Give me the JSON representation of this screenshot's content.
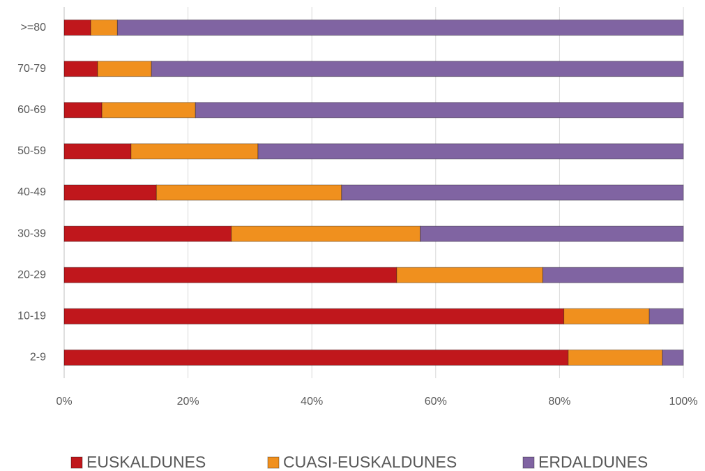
{
  "chart_data": {
    "type": "stacked-bar-horizontal",
    "categories": [
      ">=80",
      "70-79",
      "60-69",
      "50-59",
      "40-49",
      "30-39",
      "20-29",
      "10-19",
      "2-9"
    ],
    "series": [
      {
        "name": "EUSKALDUNES",
        "color": "#c0171c",
        "values": [
          4.3,
          5.4,
          6.1,
          10.8,
          14.9,
          27.0,
          53.7,
          80.7,
          81.4
        ]
      },
      {
        "name": "CUASI-EUSKALDUNES",
        "color": "#f0901e",
        "values": [
          4.3,
          8.7,
          15.1,
          20.5,
          29.9,
          30.5,
          23.6,
          13.8,
          15.2
        ]
      },
      {
        "name": "ERDALDUNES",
        "color": "#8064a2",
        "values": [
          91.4,
          85.9,
          78.8,
          68.7,
          55.2,
          42.5,
          22.7,
          5.5,
          3.4
        ]
      }
    ],
    "xlim": [
      0,
      100
    ],
    "xticks": [
      {
        "value": 0,
        "label": "0%"
      },
      {
        "value": 20,
        "label": "20%"
      },
      {
        "value": 40,
        "label": "40%"
      },
      {
        "value": 60,
        "label": "60%"
      },
      {
        "value": 80,
        "label": "80%"
      },
      {
        "value": 100,
        "label": "100%"
      }
    ],
    "grid": true,
    "legend": "bottom"
  }
}
